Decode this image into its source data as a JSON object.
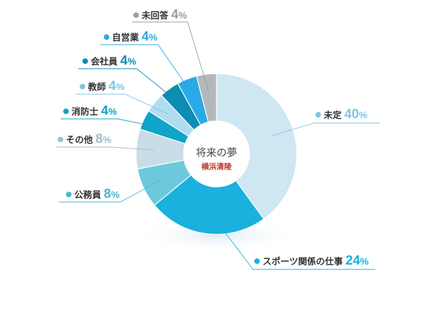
{
  "chart_data": {
    "type": "pie",
    "title": "将来の夢",
    "subtitle": "横浜清陵",
    "unit": "%",
    "slices": [
      {
        "label": "未定",
        "value": 40,
        "color": "#cfe6f3",
        "text_color": "#7fc4e3"
      },
      {
        "label": "スポーツ関係の仕事",
        "value": 24,
        "color": "#1ab1de",
        "text_color": "#1ab1de"
      },
      {
        "label": "公務員",
        "value": 8,
        "color": "#6cc9dc",
        "text_color": "#47b7d2"
      },
      {
        "label": "その他",
        "value": 8,
        "color": "#c9dde6",
        "text_color": "#9fbccb"
      },
      {
        "label": "消防士",
        "value": 4,
        "color": "#0fa4c8",
        "text_color": "#0fa4c8"
      },
      {
        "label": "教師",
        "value": 4,
        "color": "#b0dcf2",
        "text_color": "#7fc4e3"
      },
      {
        "label": "会社員",
        "value": 4,
        "color": "#0d8db2",
        "text_color": "#0d8db2"
      },
      {
        "label": "自営業",
        "value": 4,
        "color": "#2aa9e8",
        "text_color": "#2aa9e8"
      },
      {
        "label": "未回答",
        "value": 4,
        "color": "#b5b8ba",
        "text_color": "#9a9c9e"
      }
    ]
  }
}
